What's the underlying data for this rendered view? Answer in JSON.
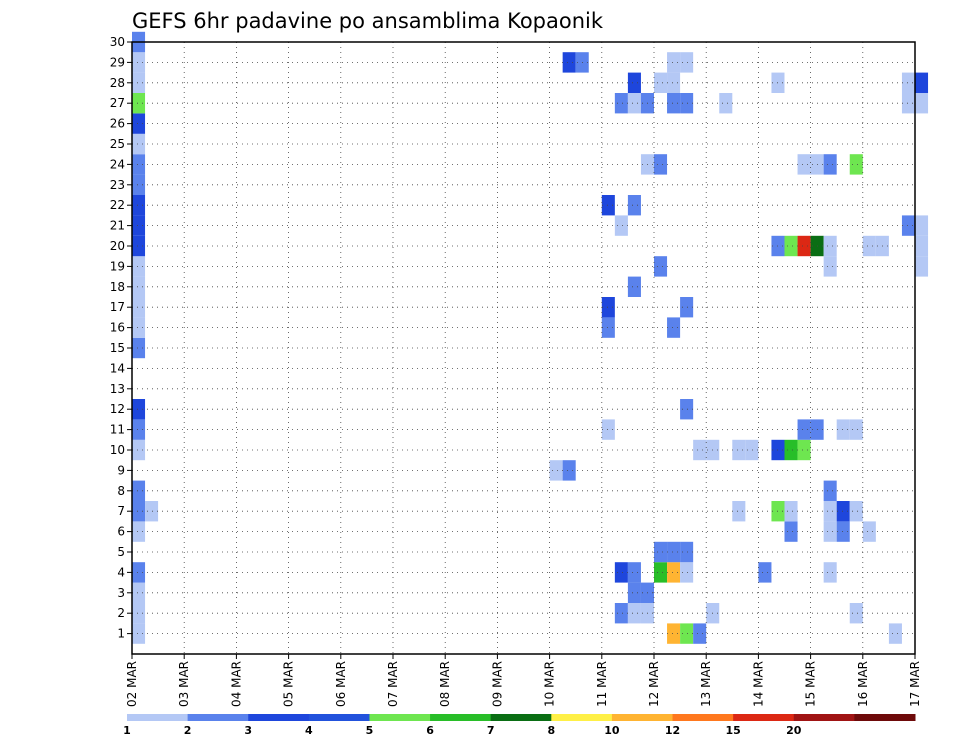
{
  "chart_data": {
    "type": "heatmap",
    "title": "GEFS 6hr padavine po ansamblima Kopaonik",
    "xlabel": "",
    "ylabel": "",
    "x_tick_labels": [
      "02 MAR",
      "03 MAR",
      "04 MAR",
      "05 MAR",
      "06 MAR",
      "07 MAR",
      "08 MAR",
      "09 MAR",
      "10 MAR",
      "11 MAR",
      "12 MAR",
      "13 MAR",
      "14 MAR",
      "15 MAR",
      "16 MAR",
      "17 MAR"
    ],
    "y_tick_labels": [
      1,
      2,
      3,
      4,
      5,
      6,
      7,
      8,
      9,
      10,
      11,
      12,
      13,
      14,
      15,
      16,
      17,
      18,
      19,
      20,
      21,
      22,
      23,
      24,
      25,
      26,
      27,
      28,
      29,
      30
    ],
    "x_range_days": [
      0,
      15
    ],
    "y_range": [
      0,
      30
    ],
    "step_days": 0.25,
    "grid": true,
    "colorbar": {
      "levels": [
        "1",
        "2",
        "3",
        "4",
        "5",
        "6",
        "7",
        "8",
        "10",
        "12",
        "15",
        "20"
      ],
      "colors": [
        "#b4c8f5",
        "#5a82ec",
        "#1e46dc",
        "#2252dc",
        "#6ee650",
        "#28be28",
        "#0a6e14",
        "#fff046",
        "#ffb432",
        "#ff781e",
        "#dc2814",
        "#a01414",
        "#6e0a0a"
      ]
    },
    "cells_note": "each cell: [member, day_offset_from_02_MAR, color_class]",
    "cells": [
      [
        1,
        0,
        1
      ],
      [
        1,
        10.25,
        9
      ],
      [
        1,
        10.5,
        5
      ],
      [
        1,
        10.75,
        2
      ],
      [
        1,
        14.5,
        1
      ],
      [
        2,
        0,
        1
      ],
      [
        2,
        9.25,
        2
      ],
      [
        2,
        9.5,
        1
      ],
      [
        2,
        9.75,
        1
      ],
      [
        2,
        11,
        1
      ],
      [
        2,
        13.75,
        1
      ],
      [
        3,
        0,
        1
      ],
      [
        3,
        9.5,
        2
      ],
      [
        3,
        9.75,
        2
      ],
      [
        4,
        0,
        2
      ],
      [
        4,
        9.25,
        3
      ],
      [
        4,
        9.5,
        2
      ],
      [
        4,
        10,
        6
      ],
      [
        4,
        10.25,
        9
      ],
      [
        4,
        10.5,
        1
      ],
      [
        4,
        12,
        2
      ],
      [
        4,
        13.25,
        1
      ],
      [
        5,
        10,
        2
      ],
      [
        5,
        10.25,
        2
      ],
      [
        5,
        10.5,
        2
      ],
      [
        6,
        0,
        1
      ],
      [
        6,
        12.5,
        2
      ],
      [
        6,
        13.25,
        1
      ],
      [
        6,
        13.5,
        2
      ],
      [
        6,
        14,
        1
      ],
      [
        7,
        0,
        2
      ],
      [
        7,
        0.25,
        1
      ],
      [
        7,
        11.5,
        1
      ],
      [
        7,
        12.25,
        5
      ],
      [
        7,
        12.5,
        1
      ],
      [
        7,
        13.25,
        1
      ],
      [
        7,
        13.5,
        3
      ],
      [
        7,
        13.75,
        1
      ],
      [
        8,
        0,
        2
      ],
      [
        8,
        13.25,
        2
      ],
      [
        9,
        8,
        1
      ],
      [
        9,
        8.25,
        2
      ],
      [
        10,
        0,
        1
      ],
      [
        10,
        10.75,
        1
      ],
      [
        10,
        11,
        1
      ],
      [
        10,
        11.5,
        1
      ],
      [
        10,
        11.75,
        1
      ],
      [
        10,
        12.25,
        3
      ],
      [
        10,
        12.5,
        6
      ],
      [
        10,
        12.75,
        5
      ],
      [
        11,
        0,
        2
      ],
      [
        11,
        9,
        1
      ],
      [
        11,
        12.75,
        2
      ],
      [
        11,
        13,
        2
      ],
      [
        11,
        13.5,
        1
      ],
      [
        11,
        13.75,
        1
      ],
      [
        12,
        0,
        3
      ],
      [
        12,
        10.5,
        2
      ],
      [
        15,
        0,
        2
      ],
      [
        16,
        0,
        1
      ],
      [
        16,
        9,
        2
      ],
      [
        16,
        10.25,
        2
      ],
      [
        17,
        0,
        1
      ],
      [
        17,
        9,
        3
      ],
      [
        17,
        10.5,
        2
      ],
      [
        18,
        0,
        1
      ],
      [
        18,
        9.5,
        2
      ],
      [
        19,
        0,
        1
      ],
      [
        19,
        10,
        2
      ],
      [
        19,
        13.25,
        1
      ],
      [
        19,
        15,
        1
      ],
      [
        20,
        0,
        3
      ],
      [
        20,
        12.25,
        2
      ],
      [
        20,
        12.5,
        5
      ],
      [
        20,
        12.75,
        11
      ],
      [
        20,
        13,
        7
      ],
      [
        20,
        13.25,
        1
      ],
      [
        20,
        14,
        1
      ],
      [
        20,
        14.25,
        1
      ],
      [
        20,
        15,
        1
      ],
      [
        21,
        0,
        3
      ],
      [
        21,
        9.25,
        1
      ],
      [
        21,
        14.75,
        2
      ],
      [
        21,
        15,
        1
      ],
      [
        22,
        0,
        3
      ],
      [
        22,
        9,
        3
      ],
      [
        22,
        9.5,
        2
      ],
      [
        23,
        0,
        2
      ],
      [
        24,
        0,
        2
      ],
      [
        24,
        9.75,
        1
      ],
      [
        24,
        10,
        2
      ],
      [
        24,
        12.75,
        1
      ],
      [
        24,
        13,
        1
      ],
      [
        24,
        13.25,
        2
      ],
      [
        24,
        13.75,
        5
      ],
      [
        25,
        0,
        1
      ],
      [
        26,
        0,
        3
      ],
      [
        27,
        0,
        5
      ],
      [
        27,
        9.25,
        2
      ],
      [
        27,
        9.5,
        1
      ],
      [
        27,
        9.75,
        2
      ],
      [
        27,
        10.25,
        2
      ],
      [
        27,
        10.5,
        2
      ],
      [
        27,
        11.25,
        1
      ],
      [
        27,
        14.75,
        1
      ],
      [
        27,
        15,
        1
      ],
      [
        28,
        0,
        1
      ],
      [
        28,
        9.5,
        3
      ],
      [
        28,
        10,
        1
      ],
      [
        28,
        10.25,
        1
      ],
      [
        28,
        12.25,
        1
      ],
      [
        28,
        14.75,
        1
      ],
      [
        28,
        15,
        3
      ],
      [
        29,
        0,
        1
      ],
      [
        29,
        8.25,
        3
      ],
      [
        29,
        8.5,
        2
      ],
      [
        29,
        10.25,
        1
      ],
      [
        29,
        10.5,
        1
      ],
      [
        30,
        0,
        2
      ]
    ]
  }
}
